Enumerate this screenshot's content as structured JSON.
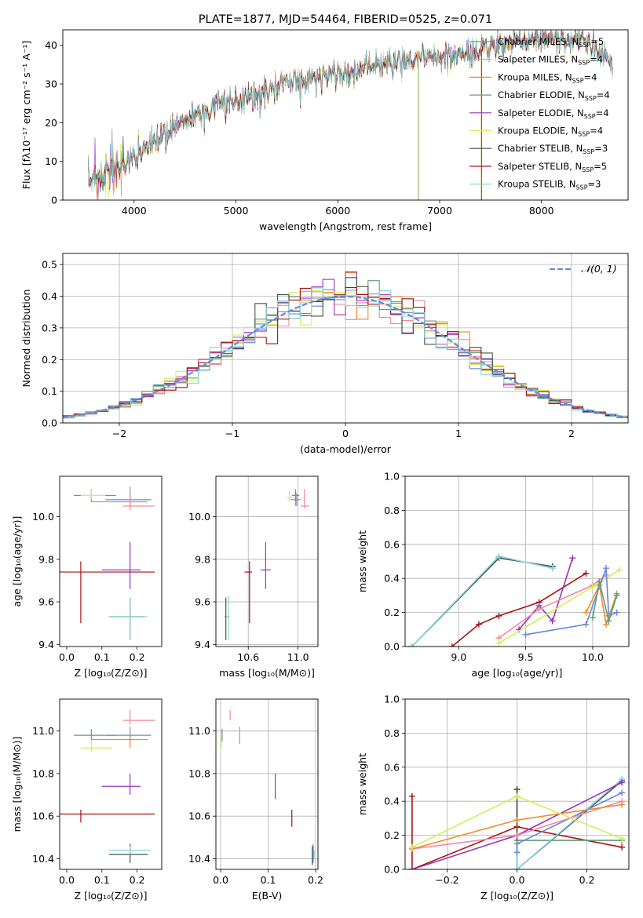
{
  "chart_data": [
    {
      "id": "spectrum",
      "type": "line",
      "title": "PLATE=1877, MJD=54464, FIBERID=0525, z=0.071",
      "xlabel": "wavelength [Angstrom, rest frame]",
      "ylabel": "Flux [fλ10⁻¹⁷ erg cm⁻² s⁻¹ A⁻¹]",
      "xlim": [
        3300,
        8850
      ],
      "ylim": [
        0,
        44
      ],
      "xticks": [
        4000,
        5000,
        6000,
        7000,
        8000
      ],
      "yticks": [
        0,
        10,
        20,
        30,
        40
      ],
      "grid": false,
      "legend_position": "top-right",
      "continuum": {
        "x": [
          3550,
          3700,
          3900,
          4100,
          4300,
          4500,
          4800,
          5000,
          5200,
          5500,
          5800,
          6100,
          6400,
          6700,
          7000,
          7300,
          7500,
          7800,
          8100,
          8400,
          8700
        ],
        "y": [
          5,
          7,
          9,
          13,
          17,
          21,
          24,
          26,
          27,
          30,
          32,
          33,
          35,
          36,
          37,
          38,
          40,
          41,
          42,
          41,
          36
        ]
      },
      "annotations": {
        "spike_6790_ylim_drop": 0,
        "spike_7410_ylim_drop": 0
      },
      "series": [
        {
          "name": "Chabrier MILES, N_SSP=5",
          "label_main": "Chabrier MILES, N",
          "label_sub": "SSP",
          "label_tail": "=5",
          "color": "#6688dd"
        },
        {
          "name": "Salpeter MILES, N_SSP=4",
          "label_main": "Salpeter MILES, N",
          "label_sub": "SSP",
          "label_tail": "=4",
          "color": "#f08aa0"
        },
        {
          "name": "Kroupa MILES, N_SSP=4",
          "label_main": "Kroupa MILES, N",
          "label_sub": "SSP",
          "label_tail": "=4",
          "color": "#ef8a2c"
        },
        {
          "name": "Chabrier ELODIE, N_SSP=4",
          "label_main": "Chabrier ELODIE, N",
          "label_sub": "SSP",
          "label_tail": "=4",
          "color": "#66997a"
        },
        {
          "name": "Salpeter ELODIE, N_SSP=4",
          "label_main": "Salpeter ELODIE, N",
          "label_sub": "SSP",
          "label_tail": "=4",
          "color": "#9933bb"
        },
        {
          "name": "Kroupa ELODIE, N_SSP=4",
          "label_main": "Kroupa ELODIE, N",
          "label_sub": "SSP",
          "label_tail": "=4",
          "color": "#d4ee55"
        },
        {
          "name": "Chabrier STELIB, N_SSP=3",
          "label_main": "Chabrier STELIB, N",
          "label_sub": "SSP",
          "label_tail": "=3",
          "color": "#445544"
        },
        {
          "name": "Salpeter STELIB, N_SSP=5",
          "label_main": "Salpeter STELIB, N",
          "label_sub": "SSP",
          "label_tail": "=5",
          "color": "#aa1111"
        },
        {
          "name": "Kroupa STELIB, N_SSP=3",
          "label_main": "Kroupa STELIB, N",
          "label_sub": "SSP",
          "label_tail": "=3",
          "color": "#88d4dd"
        }
      ]
    },
    {
      "id": "residuals",
      "type": "line",
      "xlabel": "(data-model)/error",
      "ylabel": "Normed distribution",
      "xlim": [
        -2.5,
        2.5
      ],
      "ylim": [
        0,
        0.535
      ],
      "xticks": [
        -2,
        -1,
        0,
        1,
        2
      ],
      "yticks": [
        0.0,
        0.1,
        0.2,
        0.3,
        0.4,
        0.5
      ],
      "grid": true,
      "legend_position": "top-right",
      "gaussian": {
        "name": "N(0,1)",
        "label": "𝒩(0, 1)",
        "color": "#6688dd",
        "mu": 0,
        "sigma": 1
      }
    },
    {
      "id": "z-age",
      "type": "scatter",
      "xlabel": "Z [log₁₀(Z/Z⊙)]",
      "ylabel": "age  [log₁₀(age/yr)]",
      "xlim": [
        -0.02,
        0.27
      ],
      "ylim": [
        9.39,
        10.19
      ],
      "xticks": [
        0.0,
        0.1,
        0.2
      ],
      "yticks": [
        9.4,
        9.6,
        9.8,
        10.0
      ],
      "grid": false,
      "points": [
        {
          "color": "#6688dd",
          "x": 0.18,
          "xerr": [
            0.07,
            0.06
          ],
          "y": 10.08,
          "yerr": [
            0.04,
            0.06
          ]
        },
        {
          "color": "#ef8a2c",
          "x": 0.18,
          "xerr": [
            0.11,
            0.05
          ],
          "y": 10.07,
          "yerr": [
            0.03,
            0.04
          ]
        },
        {
          "color": "#f08aa0",
          "x": 0.18,
          "xerr": [
            0.02,
            0.07
          ],
          "y": 10.05,
          "yerr": [
            0.02,
            0.08
          ]
        },
        {
          "color": "#66997a",
          "x": 0.07,
          "xerr": [
            0.05,
            0.07
          ],
          "y": 10.1,
          "yerr": [
            0.03,
            0.03
          ]
        },
        {
          "color": "#d4ee55",
          "x": 0.07,
          "xerr": [
            0.03,
            0.04
          ],
          "y": 10.1,
          "yerr": [
            0.02,
            0.03
          ]
        },
        {
          "color": "#9933bb",
          "x": 0.18,
          "xerr": [
            0.08,
            0.03
          ],
          "y": 9.75,
          "yerr": [
            0.09,
            0.13
          ]
        },
        {
          "color": "#aa1111",
          "x": 0.04,
          "xerr": [
            0.08,
            0.21
          ],
          "y": 9.74,
          "yerr": [
            0.24,
            0.05
          ]
        },
        {
          "color": "#445544",
          "x": 0.18,
          "xerr": [
            0.06,
            0.04
          ],
          "y": 9.53,
          "yerr": [
            0.11,
            0.09
          ]
        },
        {
          "color": "#88d4dd",
          "x": 0.18,
          "xerr": [
            0.06,
            0.05
          ],
          "y": 9.53,
          "yerr": [
            0.11,
            0.09
          ]
        }
      ]
    },
    {
      "id": "mass-age",
      "type": "scatter",
      "xlabel": "mass [log₁₀(M/M⊙)]",
      "ylabel": "",
      "xlim": [
        10.34,
        11.16
      ],
      "ylim": [
        9.39,
        10.19
      ],
      "xticks": [
        10.6,
        11.0
      ],
      "yticks": [
        9.4,
        9.6,
        9.8,
        10.0
      ],
      "grid": true,
      "points": [
        {
          "color": "#6688dd",
          "x": 10.99,
          "xerr": [
            0.05,
            0.03
          ],
          "y": 10.08,
          "yerr": [
            0.03,
            0.03
          ]
        },
        {
          "color": "#ef8a2c",
          "x": 10.98,
          "xerr": [
            0.04,
            0.04
          ],
          "y": 10.08,
          "yerr": [
            0.03,
            0.04
          ]
        },
        {
          "color": "#f08aa0",
          "x": 11.05,
          "xerr": [
            0.03,
            0.04
          ],
          "y": 10.05,
          "yerr": [
            0.01,
            0.08
          ]
        },
        {
          "color": "#66997a",
          "x": 10.98,
          "xerr": [
            0.03,
            0.03
          ],
          "y": 10.1,
          "yerr": [
            0.03,
            0.03
          ]
        },
        {
          "color": "#d4ee55",
          "x": 10.93,
          "xerr": [
            0.02,
            0.04
          ],
          "y": 10.09,
          "yerr": [
            0.02,
            0.03
          ]
        },
        {
          "color": "#9933bb",
          "x": 10.74,
          "xerr": [
            0.04,
            0.04
          ],
          "y": 9.75,
          "yerr": [
            0.09,
            0.13
          ]
        },
        {
          "color": "#aa1111",
          "x": 10.61,
          "xerr": [
            0.04,
            0.02
          ],
          "y": 9.74,
          "yerr": [
            0.24,
            0.05
          ]
        },
        {
          "color": "#445544",
          "x": 10.42,
          "xerr": [
            0.01,
            0.03
          ],
          "y": 9.53,
          "yerr": [
            0.11,
            0.09
          ]
        },
        {
          "color": "#88d4dd",
          "x": 10.44,
          "xerr": [
            0.02,
            0.01
          ],
          "y": 9.53,
          "yerr": [
            0.11,
            0.1
          ]
        }
      ]
    },
    {
      "id": "age-weight",
      "type": "line",
      "xlabel": "age  [log₁₀(age/yr)]",
      "ylabel": "mass weight",
      "xlim": [
        8.6,
        10.27
      ],
      "ylim": [
        0,
        1.0
      ],
      "xticks": [
        9.0,
        9.5,
        10.0
      ],
      "yticks": [
        0.0,
        0.2,
        0.4,
        0.6,
        0.8,
        1.0
      ],
      "grid": true,
      "series": [
        {
          "color": "#445544",
          "x": [
            8.65,
            9.3,
            9.7
          ],
          "y": [
            0.0,
            0.52,
            0.47
          ]
        },
        {
          "color": "#88d4dd",
          "x": [
            8.65,
            9.3,
            9.7
          ],
          "y": [
            0.0,
            0.53,
            0.46
          ]
        },
        {
          "color": "#aa1111",
          "x": [
            8.95,
            9.15,
            9.3,
            9.6,
            9.95
          ],
          "y": [
            0.0,
            0.13,
            0.18,
            0.26,
            0.43
          ]
        },
        {
          "color": "#9933bb",
          "x": [
            9.45,
            9.6,
            9.7,
            9.85
          ],
          "y": [
            0.1,
            0.24,
            0.15,
            0.52
          ]
        },
        {
          "color": "#f08aa0",
          "x": [
            9.3,
            9.6,
            10.0,
            10.1
          ],
          "y": [
            0.05,
            0.22,
            0.36,
            0.42
          ]
        },
        {
          "color": "#d4ee55",
          "x": [
            9.3,
            10.0,
            10.2
          ],
          "y": [
            0.02,
            0.35,
            0.45
          ]
        },
        {
          "color": "#6688dd",
          "x": [
            9.5,
            9.95,
            10.1,
            10.12,
            10.18
          ],
          "y": [
            0.07,
            0.13,
            0.46,
            0.18,
            0.2
          ]
        },
        {
          "color": "#ef8a2c",
          "x": [
            9.95,
            10.05,
            10.1,
            10.18
          ],
          "y": [
            0.2,
            0.36,
            0.13,
            0.31
          ]
        },
        {
          "color": "#66997a",
          "x": [
            10.0,
            10.05,
            10.12,
            10.18
          ],
          "y": [
            0.17,
            0.38,
            0.15,
            0.3
          ]
        }
      ]
    },
    {
      "id": "z-mass",
      "type": "scatter",
      "xlabel": "Z [log₁₀(Z/Z⊙)]",
      "ylabel": "mass [log₁₀(M/M⊙)]",
      "xlim": [
        -0.02,
        0.27
      ],
      "ylim": [
        10.35,
        11.15
      ],
      "xticks": [
        0.0,
        0.1,
        0.2
      ],
      "yticks": [
        10.4,
        10.6,
        10.8,
        11.0
      ],
      "grid": false,
      "points": [
        {
          "color": "#6688dd",
          "x": 0.18,
          "xerr": [
            0.07,
            0.06
          ],
          "y": 10.98,
          "yerr": [
            0.03,
            0.04
          ]
        },
        {
          "color": "#ef8a2c",
          "x": 0.18,
          "xerr": [
            0.11,
            0.05
          ],
          "y": 10.96,
          "yerr": [
            0.04,
            0.04
          ]
        },
        {
          "color": "#f08aa0",
          "x": 0.18,
          "xerr": [
            0.02,
            0.07
          ],
          "y": 11.05,
          "yerr": [
            0.02,
            0.05
          ]
        },
        {
          "color": "#66997a",
          "x": 0.07,
          "xerr": [
            0.05,
            0.07
          ],
          "y": 10.98,
          "yerr": [
            0.03,
            0.03
          ]
        },
        {
          "color": "#d4ee55",
          "x": 0.07,
          "xerr": [
            0.03,
            0.06
          ],
          "y": 10.92,
          "yerr": [
            0.02,
            0.04
          ]
        },
        {
          "color": "#9933bb",
          "x": 0.18,
          "xerr": [
            0.08,
            0.03
          ],
          "y": 10.74,
          "yerr": [
            0.04,
            0.06
          ]
        },
        {
          "color": "#aa1111",
          "x": 0.04,
          "xerr": [
            0.08,
            0.21
          ],
          "y": 10.61,
          "yerr": [
            0.04,
            0.02
          ]
        },
        {
          "color": "#445544",
          "x": 0.18,
          "xerr": [
            0.06,
            0.05
          ],
          "y": 10.42,
          "yerr": [
            0.04,
            0.05
          ]
        },
        {
          "color": "#88d4dd",
          "x": 0.18,
          "xerr": [
            0.06,
            0.06
          ],
          "y": 10.44,
          "yerr": [
            0.02,
            0.02
          ]
        }
      ]
    },
    {
      "id": "ebv-mass",
      "type": "scatter",
      "xlabel": "E(B-V)",
      "ylabel": "",
      "xlim": [
        -0.01,
        0.205
      ],
      "ylim": [
        10.35,
        11.15
      ],
      "xticks": [
        0.0,
        0.1,
        0.2
      ],
      "yticks": [
        10.4,
        10.6,
        10.8,
        11.0
      ],
      "grid": true,
      "points": [
        {
          "color": "#6688dd",
          "x": 0.195,
          "xerr": [
            0,
            0
          ],
          "y": 10.42,
          "yerr": [
            0.04,
            0.05
          ]
        },
        {
          "color": "#ef8a2c",
          "x": 0.04,
          "xerr": [
            0,
            0
          ],
          "y": 10.98,
          "yerr": [
            0.04,
            0.04
          ]
        },
        {
          "color": "#f08aa0",
          "x": 0.02,
          "xerr": [
            0,
            0
          ],
          "y": 11.07,
          "yerr": [
            0.02,
            0.03
          ]
        },
        {
          "color": "#66997a",
          "x": 0.003,
          "xerr": [
            0,
            0
          ],
          "y": 10.98,
          "yerr": [
            0.03,
            0.03
          ]
        },
        {
          "color": "#d4ee55",
          "x": 0.001,
          "xerr": [
            0,
            0
          ],
          "y": 10.94,
          "yerr": [
            0.02,
            0.04
          ]
        },
        {
          "color": "#9933bb",
          "x": 0.115,
          "xerr": [
            0,
            0
          ],
          "y": 10.74,
          "yerr": [
            0.06,
            0.06
          ]
        },
        {
          "color": "#aa1111",
          "x": 0.15,
          "xerr": [
            0,
            0
          ],
          "y": 10.59,
          "yerr": [
            0.04,
            0.04
          ]
        },
        {
          "color": "#445544",
          "x": 0.193,
          "xerr": [
            0,
            0
          ],
          "y": 10.42,
          "yerr": [
            0.05,
            0.04
          ]
        },
        {
          "color": "#88d4dd",
          "x": 0.197,
          "xerr": [
            0,
            0
          ],
          "y": 10.42,
          "yerr": [
            0.02,
            0.02
          ]
        }
      ]
    },
    {
      "id": "z-weight",
      "type": "line",
      "xlabel": "Z [log₁₀(Z/Z⊙)]",
      "ylabel": "mass weight",
      "xlim": [
        -0.32,
        0.32
      ],
      "ylim": [
        0,
        1.0
      ],
      "xticks": [
        -0.2,
        0.0,
        0.2
      ],
      "yticks": [
        0.0,
        0.2,
        0.4,
        0.6,
        0.8,
        1.0
      ],
      "grid": true,
      "series": [
        {
          "color": "#aa1111",
          "x": [
            -0.3,
            -0.3,
            0.0,
            0.3
          ],
          "y": [
            0.43,
            0.0,
            0.25,
            0.13
          ]
        },
        {
          "color": "#66997a",
          "x": [
            0.0,
            0.0,
            0.3
          ],
          "y": [
            0.47,
            0.17,
            0.17
          ]
        },
        {
          "color": "#445544",
          "x": [
            0.0,
            0.0,
            0.3
          ],
          "y": [
            0.47,
            0.0,
            0.52
          ]
        },
        {
          "color": "#88d4dd",
          "x": [
            0.0,
            0.0,
            0.3
          ],
          "y": [
            0.1,
            0.0,
            0.53
          ]
        },
        {
          "color": "#9933bb",
          "x": [
            -0.3,
            0.0,
            0.3
          ],
          "y": [
            0.0,
            0.2,
            0.51
          ]
        },
        {
          "color": "#6688dd",
          "x": [
            0.0,
            0.0,
            0.3
          ],
          "y": [
            0.1,
            0.15,
            0.45
          ]
        },
        {
          "color": "#f08aa0",
          "x": [
            -0.3,
            0.0,
            0.3
          ],
          "y": [
            0.12,
            0.2,
            0.4
          ]
        },
        {
          "color": "#ef8a2c",
          "x": [
            -0.3,
            0.0,
            0.3
          ],
          "y": [
            0.12,
            0.29,
            0.38
          ]
        },
        {
          "color": "#d4ee55",
          "x": [
            -0.3,
            0.0,
            0.3
          ],
          "y": [
            0.13,
            0.43,
            0.18
          ]
        }
      ]
    }
  ]
}
